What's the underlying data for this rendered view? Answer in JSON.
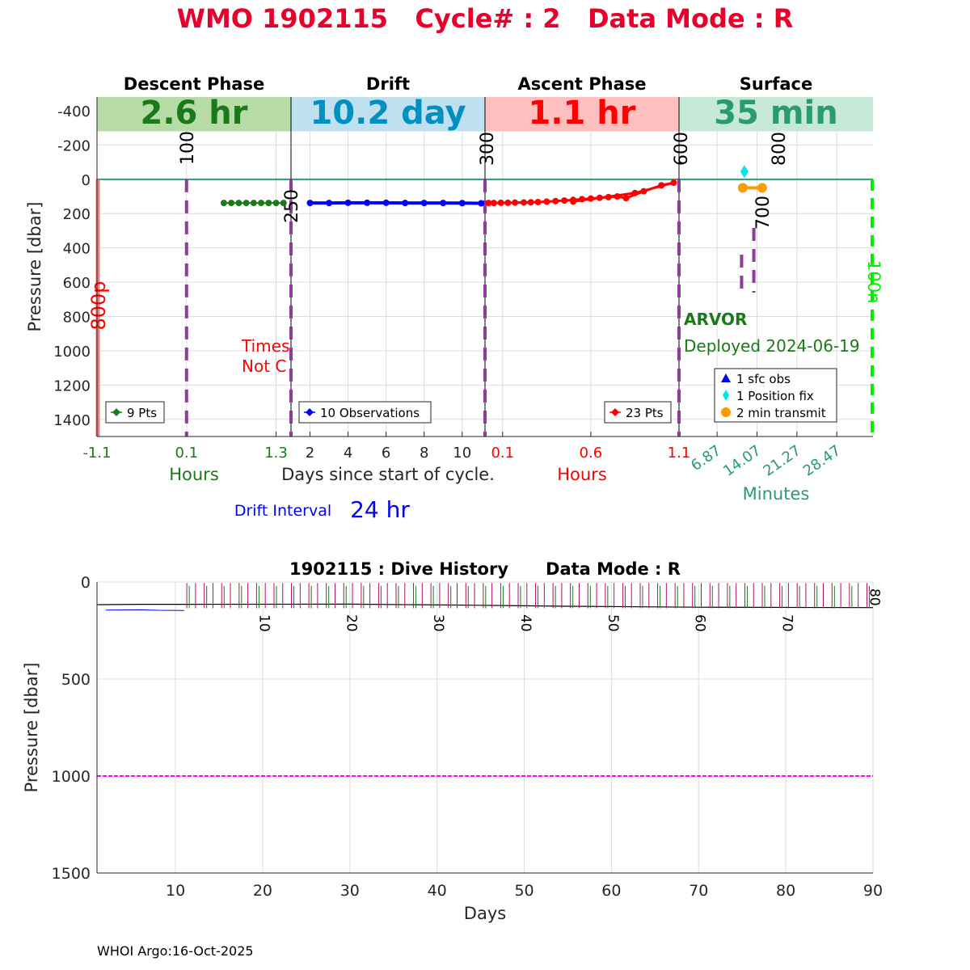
{
  "figure": {
    "title": "WMO 1902115   Cycle# : 2   Data Mode : R",
    "footer": "WHOI Argo:16-Oct-2025",
    "colors": {
      "title": "#e8002d",
      "descent": "#1a7a1a",
      "drift": "#0000ff",
      "ascent": "#ff0000",
      "surface": "#2a9a70",
      "marker_line": "#8e3b99",
      "surface_line": "#2a9a80",
      "magenta_line": "#ff00ff",
      "green_dash": "#00ee00"
    }
  },
  "chart_data": [
    {
      "type": "line",
      "name": "cycle-profile",
      "ylabel": "Pressure [dbar]",
      "ylim": [
        -480,
        1500
      ],
      "yticks": [
        -400,
        -200,
        0,
        200,
        400,
        600,
        800,
        1000,
        1200,
        1400
      ],
      "y_reversed": true,
      "grid": true,
      "center_xlabel": "Days since start of cycle.",
      "drift_interval_label": "Drift Interval",
      "drift_interval_value": "24 hr",
      "phases": [
        {
          "key": "descent",
          "header": "Descent Phase",
          "duration": "2.6 hr",
          "band_color": "#b6dba6",
          "text_color": "#1a7a1a",
          "xlabel": "Hours",
          "xlabel_color": "#1a7a1a",
          "xlim": [
            -1.1,
            1.5
          ],
          "ticks": [
            {
              "v": -1.1,
              "t": "-1.1"
            },
            {
              "v": 0.1,
              "t": "0.1"
            },
            {
              "v": 1.3,
              "t": "1.3"
            }
          ],
          "tick_color": "#1a7a1a",
          "legend": "9 Pts",
          "points_x": [
            0.6,
            0.7,
            0.8,
            0.9,
            1.0,
            1.1,
            1.2,
            1.3,
            1.4
          ],
          "points_y": [
            138,
            138,
            138,
            138,
            138,
            138,
            138,
            138,
            138
          ],
          "marker_color": "#1a7a1a",
          "dashed_x": [
            0.1,
            1.5
          ],
          "dashed_labels": [
            {
              "x": 0.1,
              "t": "100"
            },
            {
              "x": 1.5,
              "t": "250"
            }
          ],
          "left_label": "800p",
          "note_lines": [
            "Times",
            "Not C"
          ]
        },
        {
          "key": "drift",
          "header": "Drift",
          "duration": "10.2 day",
          "band_color": "#bfe1ef",
          "text_color": "#0090c0",
          "xlim": [
            1,
            11.2
          ],
          "ticks": [
            {
              "v": 2,
              "t": "2"
            },
            {
              "v": 4,
              "t": "4"
            },
            {
              "v": 6,
              "t": "6"
            },
            {
              "v": 8,
              "t": "8"
            },
            {
              "v": 10,
              "t": "10"
            }
          ],
          "tick_color": "#262626",
          "legend": "10 Observations",
          "points_x": [
            2.0,
            3.0,
            4.0,
            5.0,
            6.0,
            7.0,
            8.0,
            9.0,
            10.0,
            11.0
          ],
          "points_y": [
            138,
            138,
            137,
            137,
            137,
            138,
            138,
            138,
            139,
            140
          ],
          "marker_color": "#0000ff"
        },
        {
          "key": "ascent",
          "header": "Ascent Phase",
          "duration": "1.1 hr",
          "band_color": "#ffbfbf",
          "text_color": "#ff0000",
          "xlabel": "Hours",
          "xlabel_color": "#ff0000",
          "xlim": [
            0,
            1.1
          ],
          "ticks": [
            {
              "v": 0.1,
              "t": "0.1"
            },
            {
              "v": 0.6,
              "t": "0.6"
            },
            {
              "v": 1.1,
              "t": "1.1"
            }
          ],
          "tick_color": "#ff0000",
          "legend": "23 Pts",
          "points_x": [
            0.02,
            0.05,
            0.09,
            0.13,
            0.17,
            0.22,
            0.26,
            0.3,
            0.35,
            0.4,
            0.45,
            0.5,
            0.55,
            0.6,
            0.65,
            0.7,
            0.75,
            0.8,
            0.9,
            1.0,
            1.07,
            0.85,
            0.5
          ],
          "points_y": [
            138,
            138,
            137,
            137,
            136,
            135,
            134,
            133,
            130,
            127,
            124,
            120,
            116,
            112,
            108,
            104,
            100,
            110,
            70,
            35,
            20,
            80,
            130
          ],
          "marker_color": "#ff0000",
          "dashed_labels": [
            {
              "x": 0,
              "t": "300"
            },
            {
              "x": 1.1,
              "t": "600"
            }
          ]
        },
        {
          "key": "surface",
          "header": "Surface",
          "duration": "35 min",
          "band_color": "#c6e8d6",
          "text_color": "#2a9a70",
          "xlabel": "Minutes",
          "xlabel_color": "#2a9a70",
          "xlim": [
            0,
            35
          ],
          "ticks": [
            {
              "v": 6.87,
              "t": "6.87"
            },
            {
              "v": 14.07,
              "t": "14.07"
            },
            {
              "v": 21.27,
              "t": "21.27"
            },
            {
              "v": 28.47,
              "t": "28.47"
            }
          ],
          "tick_color": "#2a9a70",
          "legend_items": [
            {
              "label": "1 sfc obs",
              "marker": "triangle",
              "color": "#0000ff"
            },
            {
              "label": "1 Position fix",
              "marker": "diamond",
              "color": "#00e5ee"
            },
            {
              "label": "2 min transmit",
              "marker": "circle",
              "color": "#ff9a00"
            }
          ],
          "position_fix": {
            "x": 11.8,
            "y": -45
          },
          "transmit": [
            {
              "x": 11.5,
              "y": 50
            },
            {
              "x": 15.0,
              "y": 50
            }
          ],
          "dashed_labels": [
            {
              "x": 11.8,
              "t": "800"
            },
            {
              "x": 11.0,
              "t": "700"
            }
          ],
          "right_label": "100n",
          "float_type": "ARVOR",
          "deployed": "Deployed 2024-06-19"
        }
      ]
    },
    {
      "type": "line",
      "name": "dive-history",
      "title": "1902115 : Dive History",
      "title_mode": "Data Mode : R",
      "xlabel": "Days",
      "ylabel": "Pressure [dbar]",
      "xlim": [
        1,
        90
      ],
      "ylim": [
        0,
        1500
      ],
      "xticks": [
        10,
        20,
        30,
        40,
        50,
        60,
        70,
        80,
        90
      ],
      "yticks": [
        0,
        500,
        1000,
        1500
      ],
      "y_reversed": true,
      "grid": true,
      "reference_line": 1000,
      "cycle_labels": [
        10,
        20,
        30,
        40,
        50,
        60,
        70,
        80
      ],
      "dive_start_day": 11.3,
      "dive_interval_days": 1,
      "dive_count": 79,
      "park_depth": 135
    }
  ]
}
